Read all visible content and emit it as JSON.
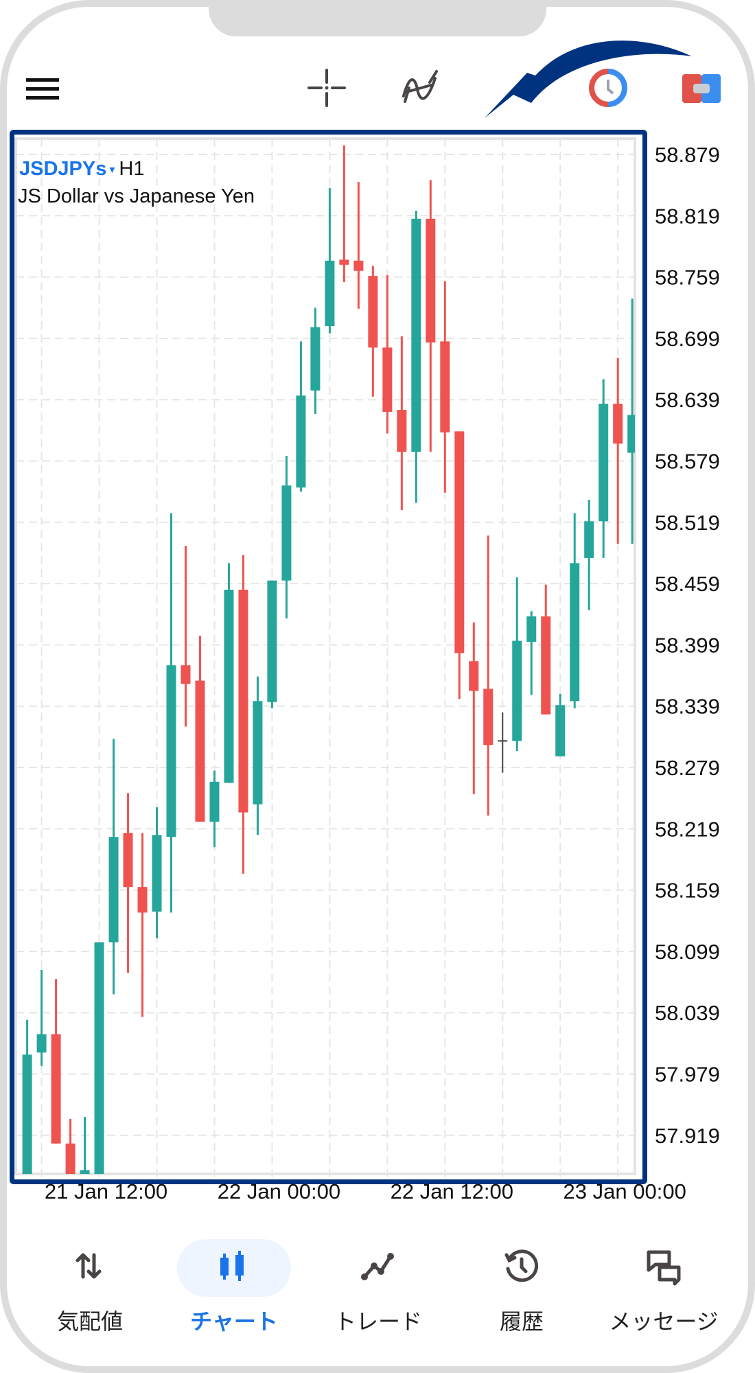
{
  "toolbar": {
    "icons": [
      "menu-icon",
      "crosshair-icon",
      "indicators-icon",
      "clock-icon",
      "one-click-trading-icon"
    ]
  },
  "chart": {
    "symbol": "JSDJPYs",
    "dropdown_glyph": "▾",
    "timeframe": "H1",
    "description": "JS Dollar vs Japanese Yen",
    "colors": {
      "bull": "#26a69a",
      "bear": "#ef5350",
      "highlight_frame": "#00337f",
      "accent": "#1a73e8"
    }
  },
  "chart_data": {
    "type": "candlestick",
    "price_ticks": [
      "58.879",
      "58.819",
      "58.759",
      "58.699",
      "58.639",
      "58.579",
      "58.519",
      "58.459",
      "58.399",
      "58.339",
      "58.279",
      "58.219",
      "58.159",
      "58.099",
      "58.039",
      "57.979",
      "57.919"
    ],
    "time_labels": [
      {
        "label": "21 Jan 12:00",
        "candle": 5
      },
      {
        "label": "22 Jan 00:00",
        "candle": 17
      },
      {
        "label": "22 Jan 12:00",
        "candle": 29
      },
      {
        "label": "23 Jan 00:00",
        "candle": 41
      }
    ],
    "ohlc": [
      [
        57.86,
        58.032,
        57.85,
        57.998
      ],
      [
        58.0,
        58.081,
        57.987,
        58.018
      ],
      [
        58.018,
        58.072,
        57.911,
        57.911
      ],
      [
        57.911,
        57.935,
        57.86,
        57.87
      ],
      [
        57.881,
        57.937,
        57.87,
        57.885
      ],
      [
        57.87,
        58.108,
        57.865,
        58.108
      ],
      [
        58.108,
        58.307,
        58.057,
        58.211
      ],
      [
        58.215,
        58.254,
        58.078,
        58.162
      ],
      [
        58.162,
        58.215,
        58.035,
        58.137
      ],
      [
        58.138,
        58.24,
        58.112,
        58.213
      ],
      [
        58.211,
        58.528,
        58.137,
        58.379
      ],
      [
        58.379,
        58.496,
        58.319,
        58.361
      ],
      [
        58.364,
        58.408,
        58.226,
        58.226
      ],
      [
        58.226,
        58.276,
        58.201,
        58.265
      ],
      [
        58.264,
        58.479,
        58.264,
        58.453
      ],
      [
        58.453,
        58.487,
        58.175,
        58.235
      ],
      [
        58.243,
        58.368,
        58.213,
        58.344
      ],
      [
        58.343,
        58.462,
        58.337,
        58.462
      ],
      [
        58.462,
        58.584,
        58.425,
        58.555
      ],
      [
        58.553,
        58.696,
        58.549,
        58.643
      ],
      [
        58.648,
        58.729,
        58.625,
        58.71
      ],
      [
        58.711,
        58.846,
        58.704,
        58.775
      ],
      [
        58.776,
        58.888,
        58.754,
        58.771
      ],
      [
        58.775,
        58.852,
        58.728,
        58.765
      ],
      [
        58.76,
        58.77,
        58.642,
        58.69
      ],
      [
        58.69,
        58.761,
        58.606,
        58.627
      ],
      [
        58.629,
        58.701,
        58.531,
        58.588
      ],
      [
        58.588,
        58.824,
        58.538,
        58.816
      ],
      [
        58.816,
        58.854,
        58.588,
        58.695
      ],
      [
        58.696,
        58.755,
        58.548,
        58.607
      ],
      [
        58.608,
        58.608,
        58.346,
        58.391
      ],
      [
        58.383,
        58.421,
        58.253,
        58.354
      ],
      [
        58.356,
        58.506,
        58.232,
        58.301
      ],
      [
        58.305,
        58.333,
        58.274,
        58.305
      ],
      [
        58.305,
        58.465,
        58.295,
        58.403
      ],
      [
        58.402,
        58.432,
        58.35,
        58.427
      ],
      [
        58.427,
        58.458,
        58.331,
        58.331
      ],
      [
        58.29,
        58.351,
        58.29,
        58.34
      ],
      [
        58.344,
        58.528,
        58.337,
        58.479
      ],
      [
        58.484,
        58.541,
        58.433,
        58.52
      ],
      [
        58.52,
        58.659,
        58.484,
        58.635
      ],
      [
        58.635,
        58.68,
        58.498,
        58.596
      ],
      [
        58.587,
        58.738,
        58.498,
        58.624
      ]
    ],
    "grid": true
  },
  "nav": {
    "items": [
      {
        "label": "気配値",
        "icon": "quotes-arrows-icon",
        "active": false
      },
      {
        "label": "チャート",
        "icon": "chart-candles-icon",
        "active": true
      },
      {
        "label": "トレード",
        "icon": "trade-line-icon",
        "active": false
      },
      {
        "label": "履歴",
        "icon": "history-clock-icon",
        "active": false
      },
      {
        "label": "メッセージ",
        "icon": "messages-icon",
        "active": false
      }
    ]
  }
}
